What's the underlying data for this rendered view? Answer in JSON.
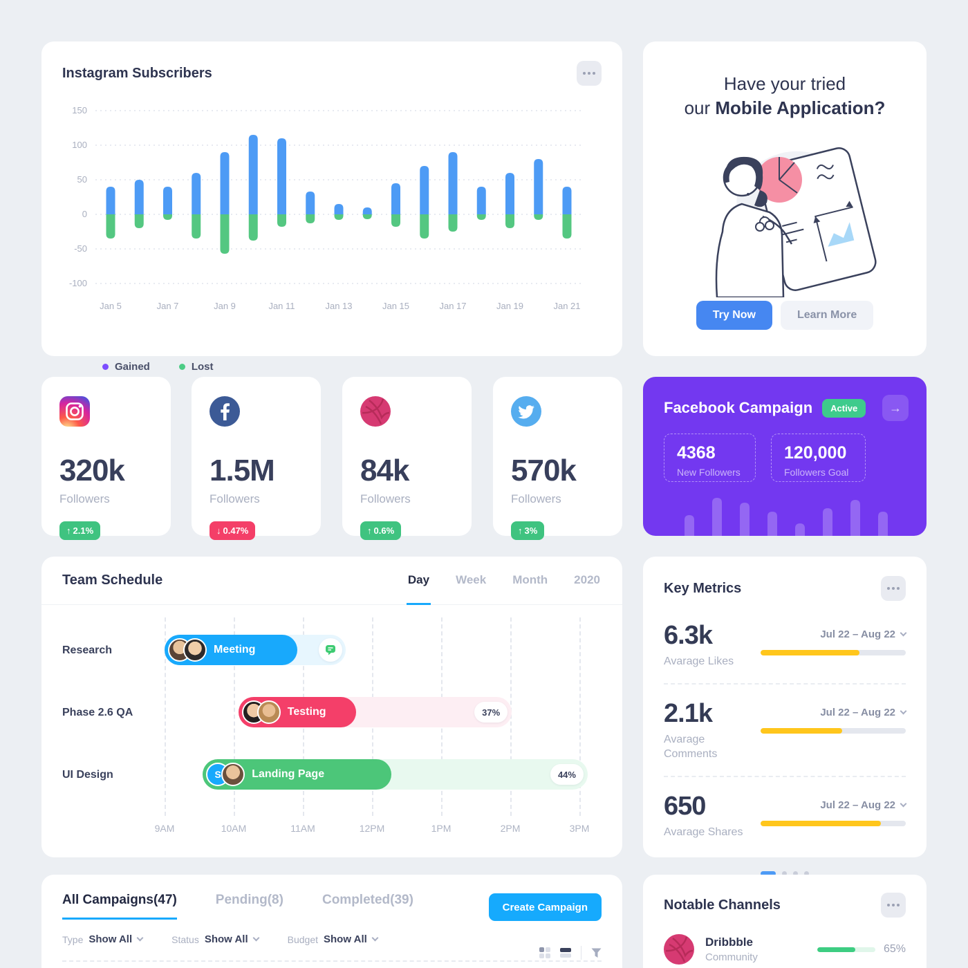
{
  "instagram_subscribers": {
    "title": "Instagram Subscribers",
    "chart_data": {
      "type": "bar",
      "stacked": true,
      "title": "Instagram Subscribers",
      "x_tick_labels": [
        "Jan 5",
        "Jan 7",
        "Jan 9",
        "Jan 11",
        "Jan 13",
        "Jan 15",
        "Jan 17",
        "Jan 19",
        "Jan 21"
      ],
      "yticks": [
        150,
        100,
        50,
        0,
        -50,
        -100
      ],
      "ylim": [
        -100,
        150
      ],
      "grid": "horizontal-dashed",
      "legend_position": "bottom-left",
      "series": [
        {
          "name": "Gained",
          "color": "#4D9BF5",
          "legend_dot_color": "#7C4DFF",
          "values": [
            40,
            50,
            40,
            60,
            90,
            115,
            110,
            33,
            15,
            10,
            45,
            70,
            90,
            40,
            60,
            80,
            40
          ]
        },
        {
          "name": "Lost",
          "color": "#54C781",
          "legend_dot_color": "#4CCC85",
          "values": [
            -35,
            -20,
            -8,
            -35,
            -57,
            -38,
            -18,
            -13,
            -8,
            -7,
            -18,
            -35,
            -25,
            -8,
            -20,
            -8,
            -35
          ]
        }
      ]
    }
  },
  "mobile_app_promo": {
    "heading_line1": "Have your tried",
    "heading_line2_prefix": "our ",
    "heading_line2_bold": "Mobile Application?",
    "try_now_label": "Try Now",
    "learn_more_label": "Learn More"
  },
  "social_stats": [
    {
      "network": "instagram",
      "value": "320k",
      "label": "Followers",
      "arrow": "↑",
      "change": "2.1%",
      "direction": "up"
    },
    {
      "network": "facebook",
      "value": "1.5M",
      "label": "Followers",
      "arrow": "↓",
      "change": "0.47%",
      "direction": "down"
    },
    {
      "network": "dribbble",
      "value": "84k",
      "label": "Followers",
      "arrow": "↑",
      "change": "0.6%",
      "direction": "up"
    },
    {
      "network": "twitter",
      "value": "570k",
      "label": "Followers",
      "arrow": "↑",
      "change": "3%",
      "direction": "up"
    }
  ],
  "facebook_campaign": {
    "title": "Facebook Campaign",
    "status": "Active",
    "arrow": "→",
    "new_followers": "4368",
    "new_followers_label": "New Followers",
    "goal": "120,000",
    "goal_label": "Followers Goal",
    "accent_color": "#7338F0",
    "mini_bar_heights": [
      30,
      55,
      48,
      35,
      18,
      40,
      52,
      35
    ]
  },
  "team_schedule": {
    "title": "Team Schedule",
    "tabs": [
      {
        "label": "Day",
        "active": true
      },
      {
        "label": "Week",
        "active": false
      },
      {
        "label": "Month",
        "active": false
      },
      {
        "label": "2020",
        "active": false
      }
    ],
    "time_labels": [
      "9AM",
      "10AM",
      "11AM",
      "12PM",
      "1PM",
      "2PM",
      "3PM"
    ],
    "rows": [
      {
        "label": "Research",
        "task": "Meeting",
        "color": "#18A9FC",
        "track_color": "#E7F6FE",
        "track_start": 0,
        "track_end": 43.7,
        "pill_end": 32,
        "has_chat": true,
        "progress": ""
      },
      {
        "label": "Phase 2.6 QA",
        "task": "Testing",
        "color": "#F43F69",
        "track_color": "#FDEEF3",
        "track_start": 17.8,
        "track_end": 83.7,
        "pill_end": 46.2,
        "has_chat": false,
        "progress": "37%"
      },
      {
        "label": "UI Design",
        "task": "Landing Page",
        "color": "#4CC679",
        "track_color": "#E8F9EF",
        "track_start": 9.2,
        "track_end": 102,
        "pill_end": 54.7,
        "has_chat": false,
        "progress": "44%",
        "avatar_initial": "S"
      }
    ]
  },
  "key_metrics": {
    "title": "Key Metrics",
    "items": [
      {
        "value": "6.3k",
        "label": "Avarage Likes",
        "range": "Jul 22 – Aug 22",
        "progress_pct": 68,
        "bar_color": "#FFC61C"
      },
      {
        "value": "2.1k",
        "label": "Avarage Comments",
        "range": "Jul 22 – Aug 22",
        "progress_pct": 56,
        "bar_color": "#FFC61C"
      },
      {
        "value": "650",
        "label": "Avarage Shares",
        "range": "Jul 22 – Aug 22",
        "progress_pct": 83,
        "bar_color": "#FFC61C"
      }
    ],
    "carousel_dots": 4,
    "carousel_active": 0
  },
  "campaigns": {
    "tabs": [
      {
        "label": "All Campaigns",
        "count": "(47)",
        "active": true
      },
      {
        "label": "Pending",
        "count": "(8)",
        "active": false
      },
      {
        "label": "Completed",
        "count": "(39)",
        "active": false
      }
    ],
    "create_button_label": "Create Campaign",
    "filters": [
      {
        "label": "Type",
        "value": "Show All"
      },
      {
        "label": "Status",
        "value": "Show All"
      },
      {
        "label": "Budget",
        "value": "Show All"
      }
    ]
  },
  "notable_channels": {
    "title": "Notable Channels",
    "channels": [
      {
        "name": "Dribbble",
        "category": "Community",
        "progress": "65%",
        "progress_pct": 65
      }
    ]
  }
}
